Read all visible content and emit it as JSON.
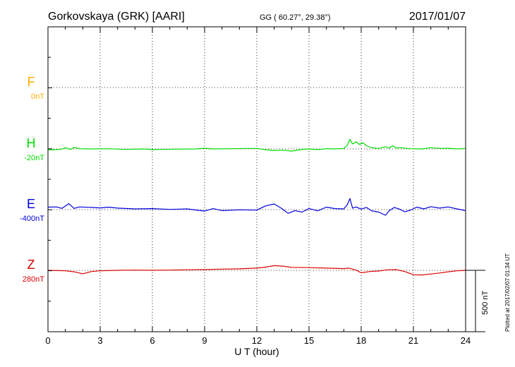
{
  "header": {
    "station": "Gorkovskaya (GRK)  [AARI]",
    "coords": "GG ( 60.27°,  29.38°)",
    "date": "2017/01/07"
  },
  "footer": {
    "plotted": "Plotted at 2017/02/07 01:34 UT"
  },
  "chart_data": {
    "type": "line",
    "title": "",
    "xlabel": "U T (hour)",
    "xlim": [
      0,
      24
    ],
    "xticks": [
      0,
      3,
      6,
      9,
      12,
      15,
      18,
      21,
      24
    ],
    "x_tick_labels": [
      "0",
      "3",
      "6",
      "9",
      "12",
      "15",
      "18",
      "21",
      "24"
    ],
    "grid": true,
    "scale_bar": {
      "value_nT": 500,
      "label": "500 nT"
    },
    "series": [
      {
        "name": "F",
        "baseline_label": "0nT",
        "color": "#ffaa00",
        "x": [],
        "y": []
      },
      {
        "name": "H",
        "baseline_label": "-20nT",
        "color": "#00dd00",
        "x": [
          0,
          0.5,
          0.8,
          1.0,
          1.3,
          1.5,
          1.8,
          2.5,
          3.5,
          4.5,
          5.5,
          6.0,
          6.5,
          7.5,
          8.5,
          9.0,
          9.5,
          10.5,
          11.5,
          12.0,
          12.5,
          13.0,
          13.5,
          14.0,
          14.5,
          15.0,
          15.5,
          16.0,
          16.5,
          17.0,
          17.2,
          17.35,
          17.5,
          17.7,
          17.9,
          18.1,
          18.3,
          18.6,
          19.0,
          19.4,
          19.6,
          19.8,
          20.0,
          20.3,
          20.8,
          21.5,
          22.0,
          22.5,
          23.0,
          23.5,
          24.0
        ],
        "y": [
          -8,
          -6,
          -2,
          10,
          -4,
          12,
          2,
          0,
          2,
          -4,
          0,
          -6,
          -4,
          -2,
          0,
          6,
          0,
          2,
          4,
          4,
          -6,
          -14,
          -10,
          -18,
          -6,
          0,
          -6,
          2,
          0,
          4,
          30,
          78,
          40,
          58,
          36,
          50,
          26,
          10,
          4,
          18,
          6,
          26,
          8,
          10,
          2,
          0,
          10,
          4,
          6,
          0,
          4
        ]
      },
      {
        "name": "E",
        "baseline_label": "-400nT",
        "color": "#0000dd",
        "x": [
          0,
          0.5,
          0.8,
          1.2,
          1.5,
          1.8,
          2.5,
          3.0,
          3.5,
          4.0,
          5.0,
          6.0,
          7.0,
          8.0,
          9.0,
          9.5,
          10.0,
          11.0,
          12.0,
          12.5,
          13.0,
          13.4,
          13.8,
          14.2,
          14.6,
          15.0,
          15.5,
          16.0,
          16.5,
          17.0,
          17.2,
          17.35,
          17.5,
          17.7,
          18.0,
          18.3,
          18.6,
          19.0,
          19.4,
          19.6,
          19.9,
          20.2,
          20.5,
          20.8,
          21.2,
          21.6,
          22.0,
          22.5,
          23.0,
          23.5,
          24.0
        ],
        "y": [
          20,
          22,
          10,
          48,
          10,
          22,
          18,
          14,
          20,
          12,
          6,
          8,
          2,
          6,
          -12,
          8,
          -8,
          -2,
          -4,
          30,
          46,
          12,
          -30,
          -8,
          -20,
          8,
          -10,
          20,
          8,
          6,
          40,
          90,
          12,
          22,
          4,
          18,
          -10,
          -20,
          -46,
          -10,
          18,
          4,
          -18,
          -6,
          20,
          6,
          24,
          12,
          22,
          6,
          -8
        ]
      },
      {
        "name": "Z",
        "baseline_label": "280nT",
        "color": "#dd0000",
        "x": [
          0,
          1.0,
          1.5,
          2.0,
          2.5,
          3.0,
          4.0,
          5.0,
          6.0,
          7.0,
          8.0,
          9.0,
          10.0,
          11.0,
          12.0,
          12.5,
          13.0,
          13.5,
          14.0,
          15.0,
          16.0,
          17.0,
          17.3,
          17.7,
          18.0,
          18.5,
          19.0,
          19.5,
          20.0,
          20.5,
          21.0,
          21.5,
          22.0,
          22.5,
          23.0,
          23.5,
          24.0
        ],
        "y": [
          0,
          -4,
          -12,
          -28,
          -10,
          -4,
          0,
          2,
          0,
          2,
          4,
          6,
          10,
          12,
          18,
          26,
          38,
          34,
          24,
          22,
          18,
          14,
          18,
          2,
          -20,
          -10,
          -6,
          4,
          6,
          -10,
          -36,
          -38,
          -30,
          -22,
          -12,
          -4,
          0
        ]
      }
    ]
  }
}
